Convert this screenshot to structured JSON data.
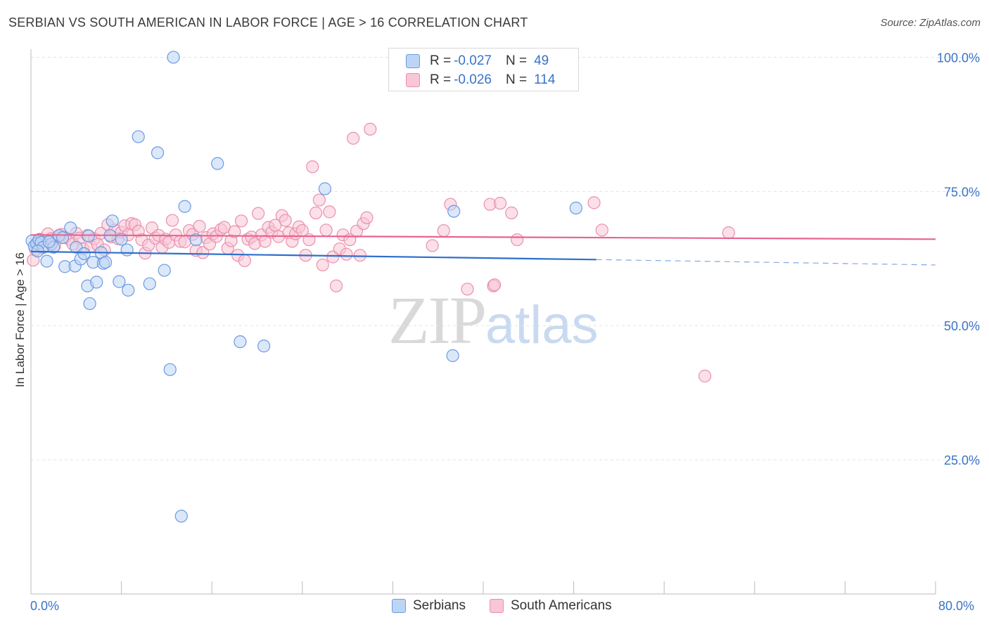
{
  "title": "SERBIAN VS SOUTH AMERICAN IN LABOR FORCE | AGE > 16 CORRELATION CHART",
  "source": "Source: ZipAtlas.com",
  "watermark": {
    "zip": "ZIP",
    "atlas": "atlas"
  },
  "legend": {
    "r_label": "R =",
    "n_label": "N =",
    "rows": [
      {
        "name": "Serbians",
        "r": "-0.027",
        "n": "49",
        "fill": "#bdd5f5",
        "stroke": "#6b9be0"
      },
      {
        "name": "South Americans",
        "r": "-0.026",
        "n": "114",
        "fill": "#f8c6d6",
        "stroke": "#ea8fae"
      }
    ]
  },
  "colors": {
    "blue_fill": "#bdd5f5",
    "blue_stroke": "#6b9be0",
    "blue_line": "#2e6fcc",
    "pink_fill": "#f8c6d6",
    "pink_stroke": "#ea8fae",
    "pink_line": "#e8648f",
    "tick_text": "#3a73c8",
    "grid": "#e3e3e3"
  },
  "chart_data": {
    "type": "scatter",
    "title": "SERBIAN VS SOUTH AMERICAN IN LABOR FORCE | AGE > 16 CORRELATION CHART",
    "xlabel": "",
    "ylabel": "In Labor Force | Age > 16",
    "xlim": [
      0,
      80
    ],
    "ylim": [
      0,
      101.5
    ],
    "x_tick_labels": [
      "0.0%",
      "80.0%"
    ],
    "y_ticks": [
      25,
      50,
      75,
      100
    ],
    "y_tick_labels": [
      "25.0%",
      "50.0%",
      "75.0%",
      "100.0%"
    ],
    "grid": true,
    "legend_position": "bottom",
    "series": [
      {
        "name": "Serbians",
        "r": -0.027,
        "n": 49,
        "trend": {
          "x": [
            0,
            50
          ],
          "y": [
            63.8,
            62.3
          ],
          "dashed_to": [
            80,
            61.3
          ]
        },
        "points": [
          [
            0.1,
            65.8
          ],
          [
            0.3,
            64.8
          ],
          [
            0.5,
            65.3
          ],
          [
            0.7,
            66.0
          ],
          [
            0.9,
            65.5
          ],
          [
            1.1,
            64.6
          ],
          [
            1.4,
            62.0
          ],
          [
            1.8,
            65.2
          ],
          [
            2.0,
            64.6
          ],
          [
            2.5,
            66.8
          ],
          [
            2.8,
            66.4
          ],
          [
            3.0,
            61.0
          ],
          [
            3.5,
            68.2
          ],
          [
            3.9,
            61.1
          ],
          [
            4.0,
            64.6
          ],
          [
            4.4,
            62.4
          ],
          [
            4.7,
            63.4
          ],
          [
            5.0,
            57.4
          ],
          [
            5.1,
            66.7
          ],
          [
            5.2,
            54.1
          ],
          [
            5.5,
            61.8
          ],
          [
            5.8,
            58.1
          ],
          [
            6.2,
            63.6
          ],
          [
            6.4,
            61.6
          ],
          [
            6.6,
            61.8
          ],
          [
            7.0,
            66.8
          ],
          [
            7.2,
            69.5
          ],
          [
            7.8,
            58.2
          ],
          [
            8.0,
            66.1
          ],
          [
            8.5,
            64.1
          ],
          [
            8.6,
            56.6
          ],
          [
            9.5,
            85.2
          ],
          [
            10.5,
            57.8
          ],
          [
            11.2,
            82.2
          ],
          [
            11.8,
            60.3
          ],
          [
            12.3,
            41.8
          ],
          [
            12.6,
            100.0
          ],
          [
            13.3,
            14.5
          ],
          [
            13.6,
            72.2
          ],
          [
            14.6,
            66.0
          ],
          [
            16.5,
            80.2
          ],
          [
            18.5,
            47.0
          ],
          [
            20.6,
            46.2
          ],
          [
            26.0,
            75.5
          ],
          [
            37.3,
            44.4
          ],
          [
            37.4,
            71.3
          ],
          [
            48.2,
            71.9
          ],
          [
            0.6,
            63.9
          ],
          [
            1.6,
            65.6
          ]
        ]
      },
      {
        "name": "South Americans",
        "r": -0.026,
        "n": 114,
        "trend": {
          "x": [
            0,
            80
          ],
          "y": [
            66.9,
            66.1
          ]
        },
        "points": [
          [
            0.2,
            62.2
          ],
          [
            0.4,
            64.1
          ],
          [
            0.6,
            65.3
          ],
          [
            0.8,
            66.1
          ],
          [
            1.0,
            64.5
          ],
          [
            1.2,
            65.8
          ],
          [
            1.5,
            67.1
          ],
          [
            1.8,
            66.2
          ],
          [
            2.1,
            64.9
          ],
          [
            2.4,
            66.6
          ],
          [
            2.7,
            67.0
          ],
          [
            3.0,
            66.4
          ],
          [
            3.4,
            66.1
          ],
          [
            3.7,
            65.2
          ],
          [
            4.0,
            67.2
          ],
          [
            4.3,
            66.3
          ],
          [
            4.6,
            64.3
          ],
          [
            5.0,
            66.8
          ],
          [
            5.3,
            64.8
          ],
          [
            5.6,
            66.2
          ],
          [
            5.9,
            65.1
          ],
          [
            6.2,
            67.2
          ],
          [
            6.5,
            64.1
          ],
          [
            6.8,
            68.8
          ],
          [
            7.1,
            66.5
          ],
          [
            7.4,
            67.8
          ],
          [
            7.7,
            66.2
          ],
          [
            8.0,
            67.4
          ],
          [
            8.3,
            68.6
          ],
          [
            8.6,
            66.9
          ],
          [
            8.9,
            69.0
          ],
          [
            9.2,
            68.8
          ],
          [
            9.5,
            67.6
          ],
          [
            9.8,
            66.0
          ],
          [
            10.1,
            63.5
          ],
          [
            10.4,
            65.0
          ],
          [
            10.7,
            68.2
          ],
          [
            11.0,
            66.3
          ],
          [
            11.3,
            66.8
          ],
          [
            11.6,
            64.6
          ],
          [
            11.9,
            66.1
          ],
          [
            12.2,
            65.5
          ],
          [
            12.5,
            69.6
          ],
          [
            12.8,
            66.9
          ],
          [
            13.2,
            65.7
          ],
          [
            13.6,
            65.6
          ],
          [
            14.0,
            67.7
          ],
          [
            14.3,
            67.0
          ],
          [
            14.6,
            64.0
          ],
          [
            14.9,
            68.5
          ],
          [
            15.2,
            63.6
          ],
          [
            15.5,
            66.4
          ],
          [
            15.8,
            65.2
          ],
          [
            16.1,
            67.1
          ],
          [
            16.4,
            66.6
          ],
          [
            16.8,
            67.9
          ],
          [
            17.1,
            68.3
          ],
          [
            17.4,
            64.4
          ],
          [
            17.7,
            65.8
          ],
          [
            18.0,
            67.5
          ],
          [
            18.3,
            63.1
          ],
          [
            18.6,
            69.5
          ],
          [
            18.9,
            62.1
          ],
          [
            19.2,
            66.1
          ],
          [
            19.5,
            66.5
          ],
          [
            19.8,
            65.3
          ],
          [
            20.1,
            70.9
          ],
          [
            20.4,
            66.9
          ],
          [
            20.7,
            65.7
          ],
          [
            21.0,
            68.3
          ],
          [
            21.3,
            67.4
          ],
          [
            21.6,
            68.7
          ],
          [
            21.9,
            66.6
          ],
          [
            22.2,
            70.5
          ],
          [
            22.5,
            69.6
          ],
          [
            22.8,
            67.3
          ],
          [
            23.1,
            65.7
          ],
          [
            23.4,
            67.1
          ],
          [
            23.7,
            68.4
          ],
          [
            24.0,
            67.7
          ],
          [
            24.3,
            63.1
          ],
          [
            24.6,
            66.0
          ],
          [
            24.9,
            79.6
          ],
          [
            25.2,
            71.0
          ],
          [
            25.5,
            73.4
          ],
          [
            25.8,
            61.3
          ],
          [
            26.1,
            67.8
          ],
          [
            26.4,
            71.2
          ],
          [
            26.7,
            62.8
          ],
          [
            27.0,
            57.4
          ],
          [
            27.3,
            64.3
          ],
          [
            27.6,
            66.9
          ],
          [
            27.9,
            63.3
          ],
          [
            28.2,
            66.0
          ],
          [
            28.5,
            84.9
          ],
          [
            28.8,
            67.6
          ],
          [
            29.1,
            63.1
          ],
          [
            29.4,
            69.0
          ],
          [
            29.7,
            70.1
          ],
          [
            30.0,
            86.6
          ],
          [
            35.5,
            64.9
          ],
          [
            36.5,
            67.7
          ],
          [
            37.1,
            72.6
          ],
          [
            38.6,
            56.8
          ],
          [
            40.6,
            72.6
          ],
          [
            40.9,
            57.4
          ],
          [
            41.0,
            57.6
          ],
          [
            41.5,
            72.8
          ],
          [
            42.5,
            71.0
          ],
          [
            49.8,
            72.9
          ],
          [
            50.5,
            67.8
          ],
          [
            59.6,
            40.6
          ],
          [
            61.7,
            67.3
          ],
          [
            43.0,
            66.0
          ]
        ]
      }
    ]
  }
}
